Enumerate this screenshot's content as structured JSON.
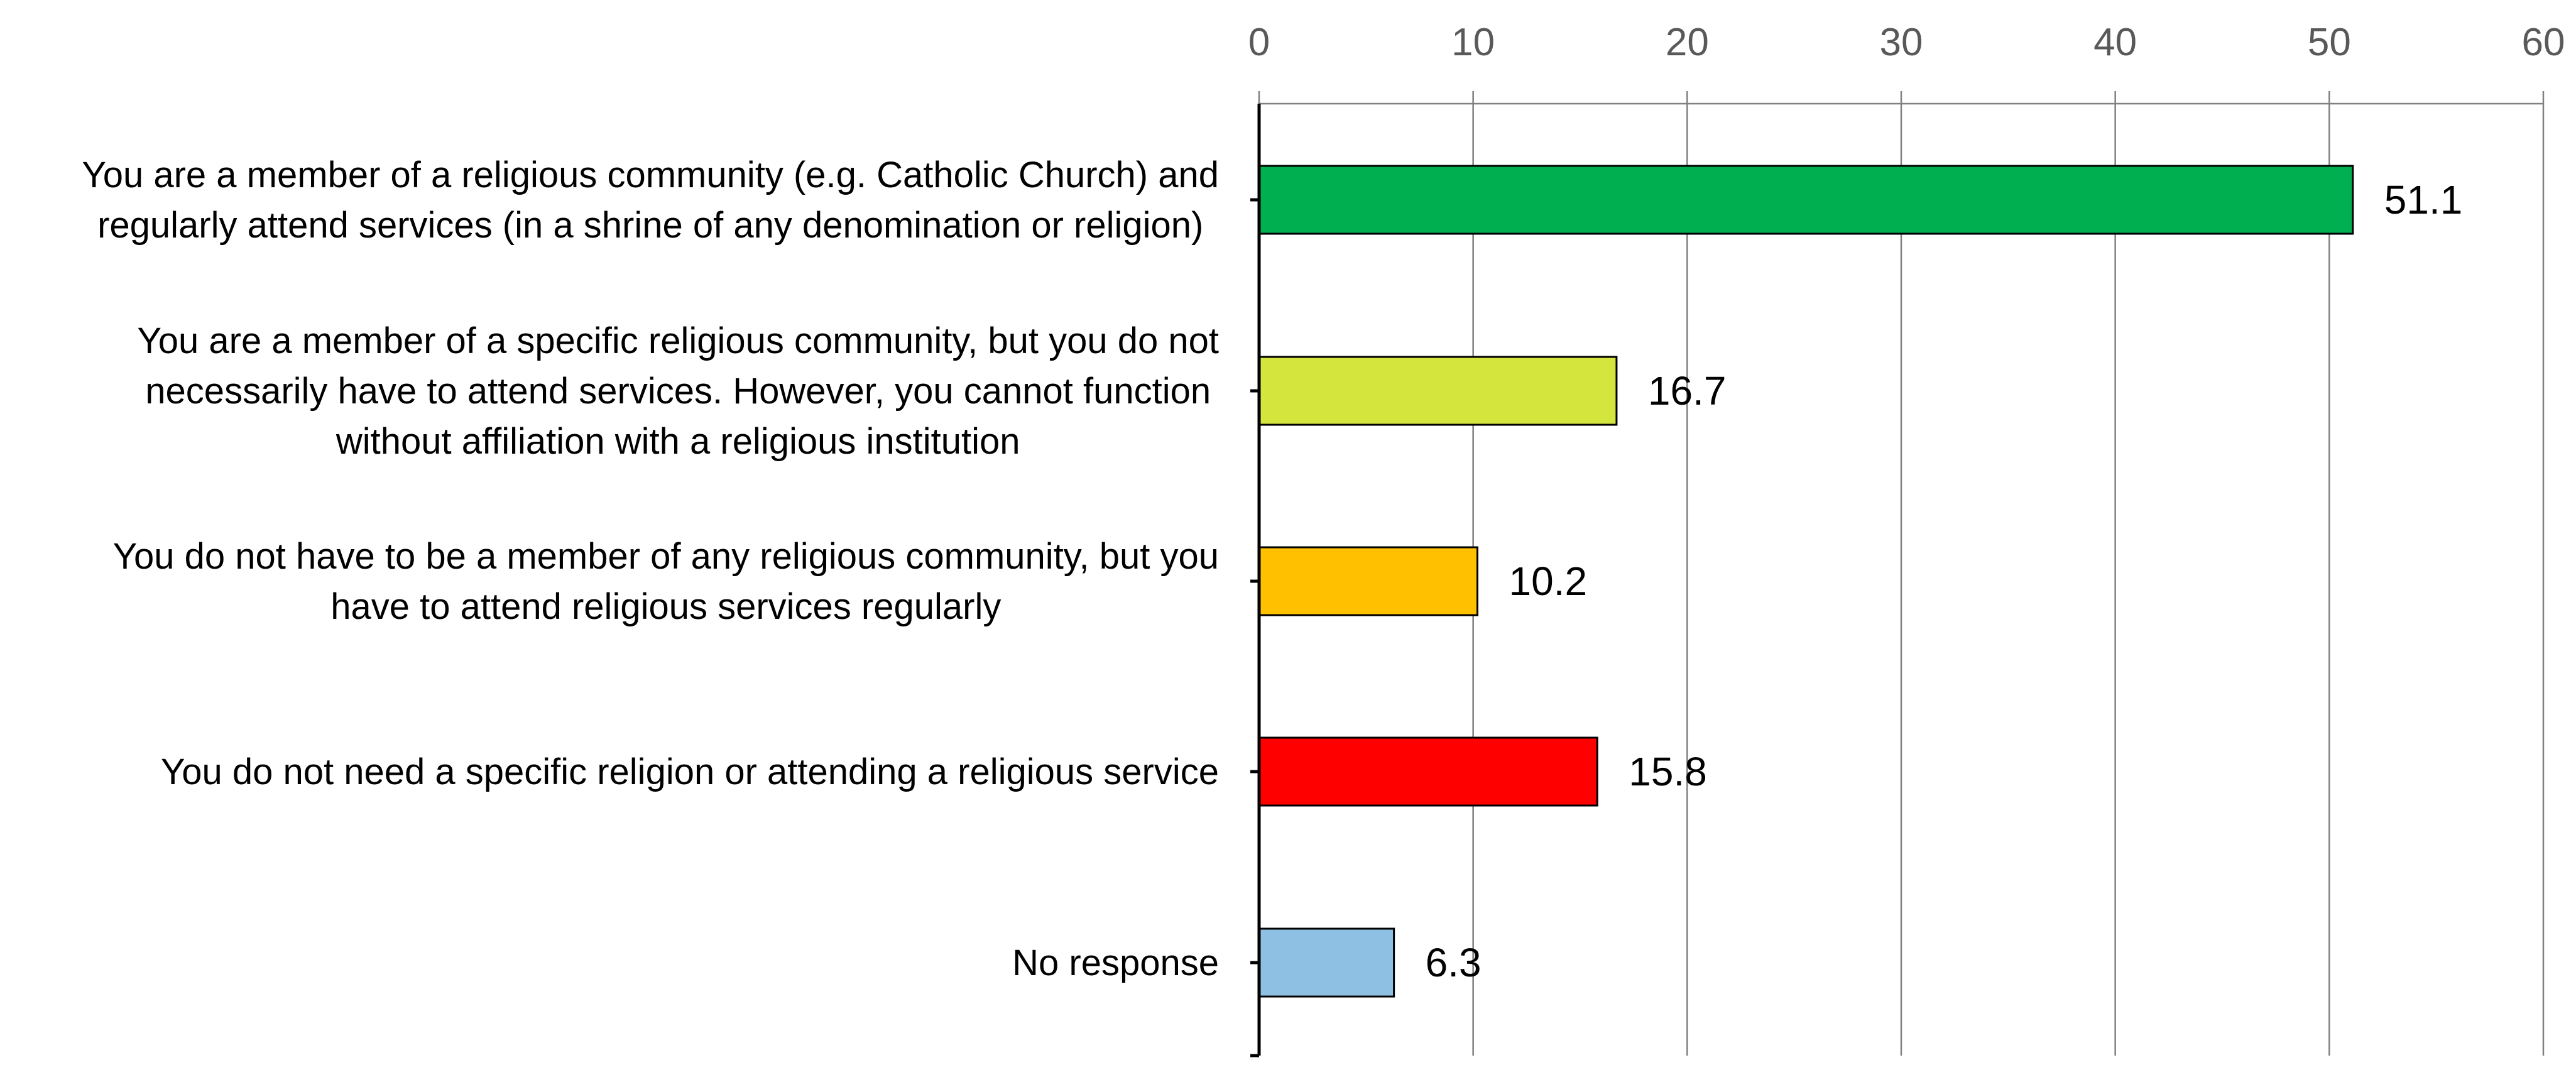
{
  "chart_data": {
    "type": "bar",
    "orientation": "horizontal",
    "title": "",
    "xlabel": "",
    "ylabel": "",
    "xlim": [
      0,
      60
    ],
    "ticks": [
      0,
      10,
      20,
      30,
      40,
      50,
      60
    ],
    "grid": true,
    "axis_position": "top",
    "categories": [
      [
        "You are a member of a religious community (e.g. Catholic Church) and",
        "regularly attend services (in a shrine of any denomination or religion)"
      ],
      [
        "You are a member of a specific religious community, but you do not",
        "necessarily have to attend services. However, you cannot function",
        "without affiliation with a religious institution"
      ],
      [
        "You do not have to be a member of any religious community, but you",
        "have to attend religious services regularly"
      ],
      [
        "You do not need a specific religion or attending a religious service"
      ],
      [
        "No response"
      ]
    ],
    "values": [
      51.1,
      16.7,
      10.2,
      15.8,
      6.3
    ],
    "value_labels": [
      "51.1",
      "16.7",
      "10.2",
      "15.8",
      "6.3"
    ],
    "colors": [
      "#00b050",
      "#d4e53e",
      "#ffc000",
      "#ff0000",
      "#8dc0e3"
    ]
  }
}
